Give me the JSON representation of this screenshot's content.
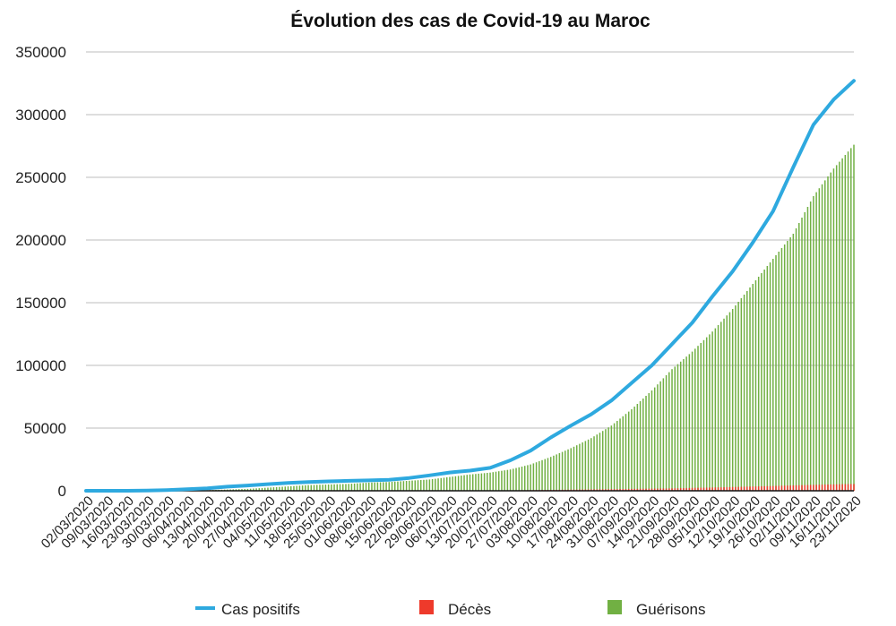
{
  "chart_data": {
    "type": "bar",
    "title": "Évolution des cas de Covid-19 au Maroc",
    "xlabel": "",
    "ylabel": "",
    "ylim": [
      0,
      350000
    ],
    "y_ticks": [
      0,
      50000,
      100000,
      150000,
      200000,
      250000,
      300000,
      350000
    ],
    "y_tick_labels": [
      "0",
      "50000",
      "100000",
      "150000",
      "200000",
      "250000",
      "300000",
      "350000"
    ],
    "grid": true,
    "legend_position": "bottom",
    "colors": {
      "cas_positifs": "#2ea9df",
      "deces": "#ee3a2b",
      "guerisons": "#71b043"
    },
    "categories": [
      "02/03/2020",
      "09/03/2020",
      "16/03/2020",
      "23/03/2020",
      "30/03/2020",
      "06/04/2020",
      "13/04/2020",
      "20/04/2020",
      "27/04/2020",
      "04/05/2020",
      "11/05/2020",
      "18/05/2020",
      "25/05/2020",
      "01/06/2020",
      "08/06/2020",
      "15/06/2020",
      "22/06/2020",
      "29/06/2020",
      "06/07/2020",
      "13/07/2020",
      "20/07/2020",
      "27/07/2020",
      "03/08/2020",
      "10/08/2020",
      "17/08/2020",
      "24/08/2020",
      "31/08/2020",
      "07/09/2020",
      "14/09/2020",
      "21/09/2020",
      "28/09/2020",
      "05/10/2020",
      "12/10/2020",
      "19/10/2020",
      "26/10/2020",
      "02/11/2020",
      "09/11/2020",
      "16/11/2020",
      "23/11/2020"
    ],
    "series": [
      {
        "name": "Cas positifs",
        "kind": "line",
        "values": [
          1,
          2,
          30,
          150,
          600,
          1200,
          2000,
          3300,
          4200,
          5300,
          6300,
          7000,
          7500,
          7900,
          8300,
          8800,
          10200,
          12300,
          14600,
          16100,
          18300,
          24300,
          32000,
          42500,
          52000,
          61000,
          72000,
          86000,
          100000,
          117000,
          134000,
          155000,
          175000,
          198000,
          223000,
          258000,
          292000,
          312000,
          327000
        ]
      },
      {
        "name": "Décès",
        "kind": "bar",
        "values": [
          0,
          0,
          1,
          20,
          40,
          120,
          130,
          150,
          180,
          190,
          190,
          195,
          200,
          205,
          210,
          215,
          220,
          230,
          250,
          260,
          270,
          300,
          500,
          700,
          900,
          1100,
          1300,
          1500,
          1700,
          1900,
          2300,
          2600,
          3000,
          3400,
          3800,
          4300,
          4700,
          5100,
          5400
        ]
      },
      {
        "name": "Guérisons",
        "kind": "bar",
        "values": [
          0,
          0,
          0,
          10,
          50,
          200,
          500,
          1000,
          1500,
          2500,
          3500,
          4500,
          5000,
          5500,
          6500,
          7000,
          8000,
          9000,
          11000,
          13000,
          14500,
          17000,
          21000,
          27000,
          34000,
          42000,
          52000,
          65000,
          80000,
          97000,
          111000,
          127000,
          145000,
          165000,
          185000,
          205000,
          235000,
          257000,
          276000
        ]
      }
    ]
  }
}
